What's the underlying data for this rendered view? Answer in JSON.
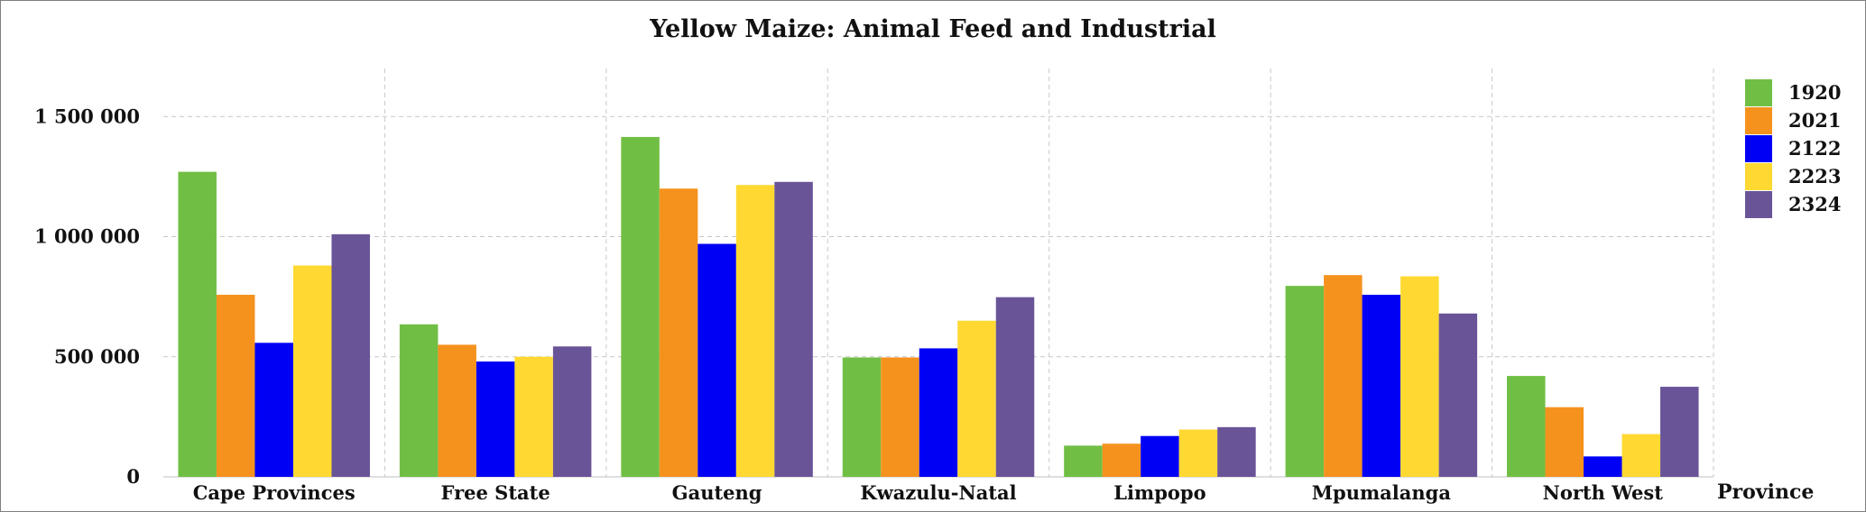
{
  "chart_data": {
    "type": "bar",
    "title": "Yellow Maize: Animal Feed and Industrial",
    "xlabel": "Province",
    "ylabel": "",
    "ylim": [
      0,
      1700000
    ],
    "yticks": [
      0,
      500000,
      1000000,
      1500000
    ],
    "ytick_labels": [
      "0",
      "500 000",
      "1 000 000",
      "1 500 000"
    ],
    "grid": true,
    "legend_position": "top-right",
    "categories": [
      "Cape Provinces",
      "Free State",
      "Gauteng",
      "Kwazulu-Natal",
      "Limpopo",
      "Mpumalanga",
      "North West"
    ],
    "series": [
      {
        "name": "1920",
        "color": "#70BF44",
        "values": [
          1270000,
          635000,
          1415000,
          497000,
          130000,
          795000,
          420000
        ]
      },
      {
        "name": "2021",
        "color": "#F5921E",
        "values": [
          758000,
          550000,
          1200000,
          497000,
          138000,
          840000,
          290000
        ]
      },
      {
        "name": "2122",
        "color": "#0000F5",
        "values": [
          558000,
          480000,
          970000,
          535000,
          170000,
          758000,
          85000
        ]
      },
      {
        "name": "2223",
        "color": "#FFD932",
        "values": [
          880000,
          500000,
          1215000,
          650000,
          197000,
          835000,
          178000
        ]
      },
      {
        "name": "2324",
        "color": "#6A5498",
        "values": [
          1010000,
          543000,
          1228000,
          748000,
          207000,
          680000,
          375000
        ]
      }
    ]
  }
}
